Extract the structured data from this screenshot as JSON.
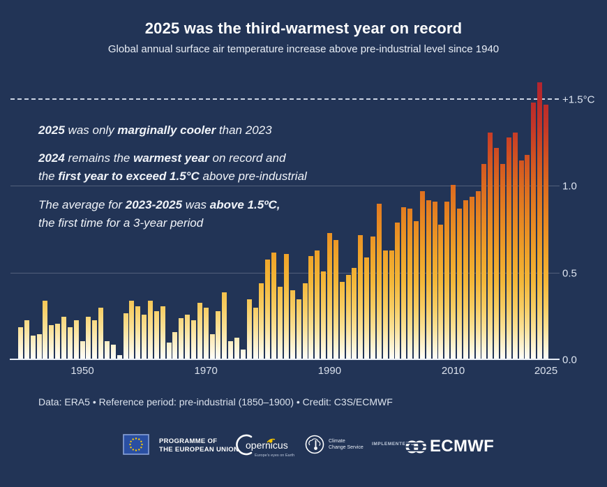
{
  "header": {
    "title": "2025 was the third-warmest year on record",
    "subtitle": "Global annual surface air temperature increase above pre-industrial level since 1940"
  },
  "annotations": [
    {
      "segments": [
        {
          "t": "2025",
          "b": true
        },
        {
          "t": " was only "
        },
        {
          "t": "marginally cooler",
          "b": true
        },
        {
          "t": " than 2023"
        }
      ]
    },
    {
      "segments": [
        {
          "t": "2024",
          "b": true
        },
        {
          "t": " remains the "
        },
        {
          "t": "warmest year",
          "b": true
        },
        {
          "t": " on record and\nthe "
        },
        {
          "t": "first year to exceed 1.5°C",
          "b": true
        },
        {
          "t": " above pre-industrial"
        }
      ]
    },
    {
      "segments": [
        {
          "t": "The average for "
        },
        {
          "t": "2023-2025",
          "b": true
        },
        {
          "t": " was "
        },
        {
          "t": "above 1.5ºC,",
          "b": true
        },
        {
          "t": "\nthe first time for a 3-year period"
        }
      ]
    }
  ],
  "chart_data": {
    "type": "bar",
    "title": "Global annual surface air temperature increase above pre-industrial level (°C)",
    "x": [
      1940,
      1941,
      1942,
      1943,
      1944,
      1945,
      1946,
      1947,
      1948,
      1949,
      1950,
      1951,
      1952,
      1953,
      1954,
      1955,
      1956,
      1957,
      1958,
      1959,
      1960,
      1961,
      1962,
      1963,
      1964,
      1965,
      1966,
      1967,
      1968,
      1969,
      1970,
      1971,
      1972,
      1973,
      1974,
      1975,
      1976,
      1977,
      1978,
      1979,
      1980,
      1981,
      1982,
      1983,
      1984,
      1985,
      1986,
      1987,
      1988,
      1989,
      1990,
      1991,
      1992,
      1993,
      1994,
      1995,
      1996,
      1997,
      1998,
      1999,
      2000,
      2001,
      2002,
      2003,
      2004,
      2005,
      2006,
      2007,
      2008,
      2009,
      2010,
      2011,
      2012,
      2013,
      2014,
      2015,
      2016,
      2017,
      2018,
      2019,
      2020,
      2021,
      2022,
      2023,
      2024,
      2025
    ],
    "values": [
      0.19,
      0.23,
      0.14,
      0.15,
      0.34,
      0.2,
      0.21,
      0.25,
      0.19,
      0.23,
      0.11,
      0.25,
      0.23,
      0.3,
      0.11,
      0.09,
      0.03,
      0.27,
      0.34,
      0.31,
      0.26,
      0.34,
      0.28,
      0.31,
      0.1,
      0.16,
      0.24,
      0.26,
      0.23,
      0.33,
      0.3,
      0.15,
      0.28,
      0.39,
      0.11,
      0.13,
      0.06,
      0.35,
      0.3,
      0.44,
      0.58,
      0.62,
      0.42,
      0.61,
      0.4,
      0.35,
      0.44,
      0.6,
      0.63,
      0.51,
      0.73,
      0.69,
      0.45,
      0.49,
      0.53,
      0.72,
      0.59,
      0.71,
      0.9,
      0.63,
      0.63,
      0.79,
      0.88,
      0.87,
      0.8,
      0.97,
      0.92,
      0.91,
      0.78,
      0.91,
      1.01,
      0.87,
      0.92,
      0.94,
      0.97,
      1.13,
      1.31,
      1.22,
      1.13,
      1.28,
      1.31,
      1.15,
      1.18,
      1.48,
      1.6,
      1.47
    ],
    "unit": "°C",
    "ylim": [
      0,
      1.7
    ],
    "grid": "horizontal",
    "y_ticks": [
      {
        "value": 0.0,
        "label": "0.0",
        "style": "baseline"
      },
      {
        "value": 0.5,
        "label": "0.5",
        "style": "grid"
      },
      {
        "value": 1.0,
        "label": "1.0",
        "style": "grid"
      },
      {
        "value": 1.5,
        "label": "+1.5°C",
        "style": "dashed-threshold"
      }
    ],
    "x_ticks": [
      {
        "year": 1950,
        "label": "1950"
      },
      {
        "year": 1970,
        "label": "1970"
      },
      {
        "year": 1990,
        "label": "1990"
      },
      {
        "year": 2010,
        "label": "2010"
      },
      {
        "year": 2025,
        "label": "2025"
      }
    ],
    "colors": {
      "background": "#223456",
      "dashed_threshold_line": "#ccd5e4",
      "axis_line": "#e8edf5",
      "bar_gradient_by_degree": [
        [
          0.0,
          "#ffffff"
        ],
        [
          0.08,
          "#fcf2d1"
        ],
        [
          0.18,
          "#fae197"
        ],
        [
          0.3,
          "#f7cd63"
        ],
        [
          0.45,
          "#f3b739"
        ],
        [
          0.6,
          "#efa42a"
        ],
        [
          0.75,
          "#e98e23"
        ],
        [
          0.9,
          "#e27a20"
        ],
        [
          1.05,
          "#d96420"
        ],
        [
          1.2,
          "#cf4c22"
        ],
        [
          1.35,
          "#c43628"
        ],
        [
          1.5,
          "#ba2a2a"
        ],
        [
          1.62,
          "#b12431"
        ]
      ]
    }
  },
  "footer": {
    "credit_line": "Data: ERA5 • Reference period: pre-industrial (1850–1900) • Credit: C3S/ECMWF",
    "logos": {
      "eu_programme_label": "PROGRAMME OF\nTHE EUROPEAN UNION",
      "copernicus_name": "opernicus",
      "copernicus_tagline": "Europe's eyes on Earth",
      "ccs_label": "Climate\nChange Service",
      "implemented_by": "IMPLEMENTED BY",
      "ecmwf_name": "ECMWF",
      "eu_flag_blue": "#2a4fa2",
      "eu_star_yellow": "#ffcc00"
    }
  }
}
